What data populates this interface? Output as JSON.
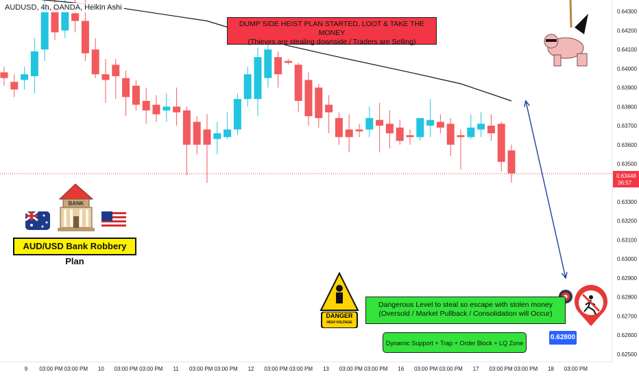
{
  "header": {
    "ticker": "AUDUSD, 4h, OANDA, Heikin Ashi"
  },
  "annotations": {
    "plan_title": "DUMP SIDE HEIST PLAN STARTED, LOOT & TAKE THE MONEY",
    "plan_subtitle": "(Thieves are stealing downside / Traders are Selling)",
    "plan_label": "AUD/USD Bank Robbery Plan",
    "bank_sign": "BANK",
    "danger_title": "DANGER",
    "danger_sub": "HIGH VOLTAGE",
    "target_line1": "Dangerous Level to steal so escape with stolen money",
    "target_line2": "(Oversold / Market Pullback / Consolidation will Occur)",
    "target_zone": "Dynamic Support + Trap + Order Block + LQ Zone",
    "target_price": "0.62800"
  },
  "price_scale": {
    "current_price": "0.63448",
    "countdown": "36:57"
  },
  "colors": {
    "bull": "#22c4e0",
    "bear": "#f25a5e",
    "arrow": "#1f3f9e",
    "last_price": "#f23645"
  },
  "chart_data": {
    "type": "candlestick",
    "ylim": [
      0.6246,
      0.6436
    ],
    "y_ticks": [
      "0.64300",
      "0.64200",
      "0.64100",
      "0.64000",
      "0.63900",
      "0.63800",
      "0.63700",
      "0.63600",
      "0.63500",
      "0.63400",
      "0.63300",
      "0.63200",
      "0.63100",
      "0.63000",
      "0.62900",
      "0.62800",
      "0.62700",
      "0.62600",
      "0.62500"
    ],
    "x_ticks": [
      "9",
      "03:00 PM",
      "03:00 PM",
      "10",
      "03:00 PM",
      "03:00 PM",
      "11",
      "03:00 PM",
      "03:00 PM",
      "12",
      "03:00 PM",
      "03:00 PM",
      "13",
      "03:00 PM",
      "03:00 PM",
      "16",
      "03:00 PM",
      "03:00 PM",
      "17",
      "03:00 PM",
      "03:00 PM",
      "18",
      "03:00 PM"
    ],
    "candles": [
      {
        "o": 0.6398,
        "h": 0.6401,
        "l": 0.6391,
        "c": 0.6395
      },
      {
        "o": 0.6393,
        "h": 0.6397,
        "l": 0.6385,
        "c": 0.6389
      },
      {
        "o": 0.6394,
        "h": 0.6401,
        "l": 0.6389,
        "c": 0.6397
      },
      {
        "o": 0.6396,
        "h": 0.6416,
        "l": 0.6387,
        "c": 0.6409
      },
      {
        "o": 0.641,
        "h": 0.6436,
        "l": 0.6404,
        "c": 0.6432
      },
      {
        "o": 0.6432,
        "h": 0.6436,
        "l": 0.6415,
        "c": 0.6419
      },
      {
        "o": 0.642,
        "h": 0.6436,
        "l": 0.6416,
        "c": 0.643
      },
      {
        "o": 0.6429,
        "h": 0.6436,
        "l": 0.6419,
        "c": 0.6425
      },
      {
        "o": 0.6425,
        "h": 0.6436,
        "l": 0.6404,
        "c": 0.6408
      },
      {
        "o": 0.641,
        "h": 0.6416,
        "l": 0.6395,
        "c": 0.6397
      },
      {
        "o": 0.6397,
        "h": 0.6405,
        "l": 0.6382,
        "c": 0.6394
      },
      {
        "o": 0.6402,
        "h": 0.6405,
        "l": 0.6384,
        "c": 0.6396
      },
      {
        "o": 0.6395,
        "h": 0.6399,
        "l": 0.6375,
        "c": 0.6385
      },
      {
        "o": 0.6391,
        "h": 0.6394,
        "l": 0.6378,
        "c": 0.6381
      },
      {
        "o": 0.6383,
        "h": 0.639,
        "l": 0.6371,
        "c": 0.6378
      },
      {
        "o": 0.6381,
        "h": 0.6386,
        "l": 0.6372,
        "c": 0.6376
      },
      {
        "o": 0.6378,
        "h": 0.6387,
        "l": 0.6372,
        "c": 0.638
      },
      {
        "o": 0.638,
        "h": 0.639,
        "l": 0.637,
        "c": 0.6377
      },
      {
        "o": 0.6378,
        "h": 0.638,
        "l": 0.6344,
        "c": 0.636
      },
      {
        "o": 0.6372,
        "h": 0.6375,
        "l": 0.6355,
        "c": 0.636
      },
      {
        "o": 0.6368,
        "h": 0.6376,
        "l": 0.634,
        "c": 0.636
      },
      {
        "o": 0.6363,
        "h": 0.6372,
        "l": 0.6355,
        "c": 0.6366
      },
      {
        "o": 0.6364,
        "h": 0.6377,
        "l": 0.6363,
        "c": 0.6368
      },
      {
        "o": 0.6368,
        "h": 0.6387,
        "l": 0.6365,
        "c": 0.6384
      },
      {
        "o": 0.6384,
        "h": 0.6401,
        "l": 0.638,
        "c": 0.6397
      },
      {
        "o": 0.6384,
        "h": 0.6411,
        "l": 0.6375,
        "c": 0.6406
      },
      {
        "o": 0.6395,
        "h": 0.6413,
        "l": 0.639,
        "c": 0.641
      },
      {
        "o": 0.6406,
        "h": 0.6409,
        "l": 0.639,
        "c": 0.6397
      },
      {
        "o": 0.6404,
        "h": 0.6405,
        "l": 0.6402,
        "c": 0.6403
      },
      {
        "o": 0.6402,
        "h": 0.6403,
        "l": 0.6377,
        "c": 0.6383
      },
      {
        "o": 0.6394,
        "h": 0.6398,
        "l": 0.637,
        "c": 0.6375
      },
      {
        "o": 0.639,
        "h": 0.6392,
        "l": 0.6369,
        "c": 0.6374
      },
      {
        "o": 0.6381,
        "h": 0.6386,
        "l": 0.6366,
        "c": 0.6377
      },
      {
        "o": 0.6374,
        "h": 0.6377,
        "l": 0.636,
        "c": 0.6364
      },
      {
        "o": 0.6368,
        "h": 0.6376,
        "l": 0.6356,
        "c": 0.6364
      },
      {
        "o": 0.6368,
        "h": 0.6371,
        "l": 0.6364,
        "c": 0.6367
      },
      {
        "o": 0.6368,
        "h": 0.638,
        "l": 0.6364,
        "c": 0.6374
      },
      {
        "o": 0.6373,
        "h": 0.6382,
        "l": 0.6356,
        "c": 0.637
      },
      {
        "o": 0.6371,
        "h": 0.6378,
        "l": 0.6358,
        "c": 0.6366
      },
      {
        "o": 0.6369,
        "h": 0.6373,
        "l": 0.636,
        "c": 0.6362
      },
      {
        "o": 0.6365,
        "h": 0.6368,
        "l": 0.636,
        "c": 0.6364
      },
      {
        "o": 0.6364,
        "h": 0.6373,
        "l": 0.6362,
        "c": 0.6374
      },
      {
        "o": 0.637,
        "h": 0.6384,
        "l": 0.6364,
        "c": 0.6373
      },
      {
        "o": 0.6372,
        "h": 0.6376,
        "l": 0.6366,
        "c": 0.6369
      },
      {
        "o": 0.6371,
        "h": 0.6374,
        "l": 0.6354,
        "c": 0.636
      },
      {
        "o": 0.6365,
        "h": 0.6368,
        "l": 0.6347,
        "c": 0.6364
      },
      {
        "o": 0.6364,
        "h": 0.6376,
        "l": 0.6363,
        "c": 0.6369
      },
      {
        "o": 0.6368,
        "h": 0.6377,
        "l": 0.6364,
        "c": 0.6371
      },
      {
        "o": 0.637,
        "h": 0.6376,
        "l": 0.6362,
        "c": 0.6366
      },
      {
        "o": 0.6371,
        "h": 0.6372,
        "l": 0.6346,
        "c": 0.6351
      },
      {
        "o": 0.6357,
        "h": 0.636,
        "l": 0.634,
        "c": 0.6345
      }
    ],
    "resistance_line": [
      [
        0,
        0.6438
      ],
      [
        10,
        0.6433
      ],
      [
        20,
        0.6425
      ],
      [
        28,
        0.6412
      ],
      [
        33,
        0.6406
      ],
      [
        40,
        0.6398
      ],
      [
        45,
        0.6392
      ],
      [
        50,
        0.6383
      ]
    ],
    "projection": {
      "from_index": 51,
      "from_price": 0.6383,
      "to_price": 0.629
    },
    "last_price": 0.63448
  }
}
